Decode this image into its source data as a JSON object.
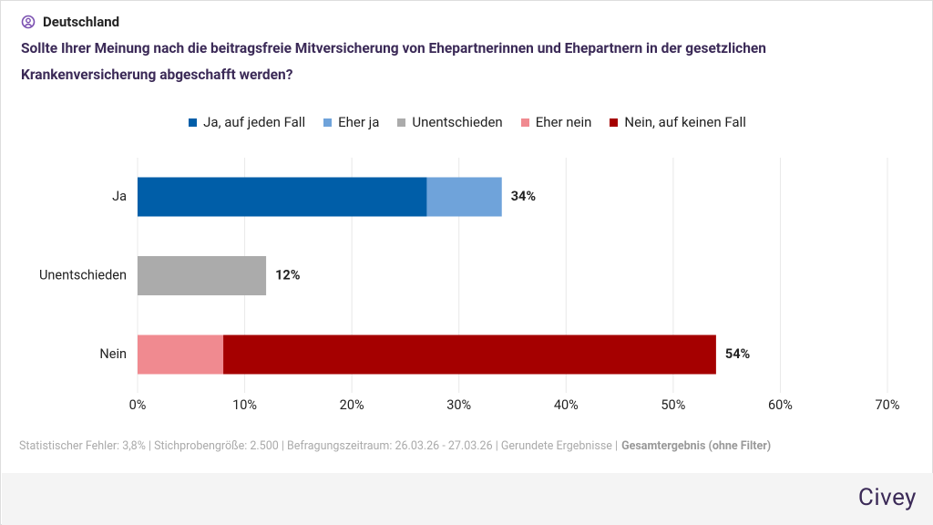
{
  "header": {
    "region": "Deutschland"
  },
  "chart_data": {
    "type": "stacked-bar-horizontal",
    "title": "Sollte Ihrer Meinung nach die beitragsfreie Mitversicherung von Ehepartnerinnen und Ehepartnern in der gesetzlichen Krankenversicherung abgeschafft werden?",
    "categories": [
      "Ja",
      "Unentschieden",
      "Nein"
    ],
    "series": [
      {
        "name": "Ja, auf jeden Fall",
        "color": "#005ea8",
        "values": [
          27,
          null,
          null
        ]
      },
      {
        "name": "Eher ja",
        "color": "#6fa3da",
        "values": [
          7,
          null,
          null
        ]
      },
      {
        "name": "Unentschieden",
        "color": "#ababab",
        "values": [
          null,
          12,
          null
        ]
      },
      {
        "name": "Eher nein",
        "color": "#f08a90",
        "values": [
          null,
          null,
          8
        ]
      },
      {
        "name": "Nein, auf keinen Fall",
        "color": "#a50000",
        "values": [
          null,
          null,
          46
        ]
      }
    ],
    "totals": {
      "values": [
        34,
        12,
        54
      ],
      "value_labels": [
        "34%",
        "12%",
        "54%"
      ]
    },
    "xlim": [
      0,
      70
    ],
    "xticks": [
      {
        "value": 0,
        "label": "0%"
      },
      {
        "value": 10,
        "label": "10%"
      },
      {
        "value": 20,
        "label": "20%"
      },
      {
        "value": 30,
        "label": "30%"
      },
      {
        "value": 40,
        "label": "40%"
      },
      {
        "value": 50,
        "label": "50%"
      },
      {
        "value": 60,
        "label": "60%"
      },
      {
        "value": 70,
        "label": "70%"
      }
    ],
    "grid": true,
    "legend": "top"
  },
  "footer": {
    "note": "Statistischer Fehler: 3,8% | Stichprobengröße: 2.500 | Befragungszeitraum: 26.03.26 - 27.03.26 | Gerundete Ergebnisse |",
    "filter": "Gesamtergebnis (ohne Filter)"
  },
  "brand": "Civey"
}
